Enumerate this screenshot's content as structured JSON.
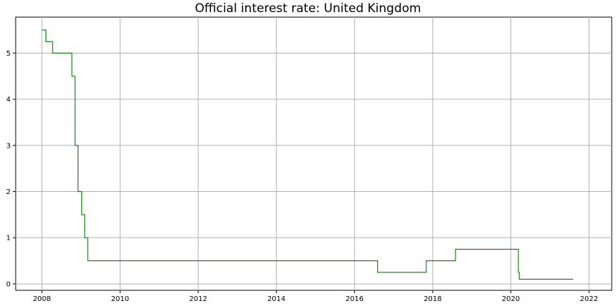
{
  "chart_data": {
    "type": "line",
    "title": "Official interest rate: United Kingdom",
    "xlabel": "",
    "ylabel": "",
    "grid": true,
    "line_color": "#008000",
    "grid_color": "#b0b0b0",
    "x_ticks": [
      "2008",
      "2010",
      "2012",
      "2014",
      "2016",
      "2018",
      "2020",
      "2022"
    ],
    "y_ticks": [
      "0",
      "1",
      "2",
      "3",
      "4",
      "5"
    ],
    "xlim": [
      "2007-05-01",
      "2022-08-01"
    ],
    "ylim": [
      -0.14,
      5.78
    ],
    "series": [
      {
        "step": "post",
        "x": [
          "2008-01-01",
          "2008-02-07",
          "2008-04-10",
          "2008-10-08",
          "2008-11-06",
          "2008-12-04",
          "2009-01-08",
          "2009-02-05",
          "2009-03-05",
          "2016-08-04",
          "2017-11-02",
          "2018-08-02",
          "2020-03-11",
          "2020-03-19",
          "2021-08-05"
        ],
        "y": [
          5.5,
          5.25,
          5.0,
          4.5,
          3.0,
          2.0,
          1.5,
          1.0,
          0.5,
          0.25,
          0.5,
          0.75,
          0.25,
          0.1,
          0.1
        ]
      }
    ]
  }
}
